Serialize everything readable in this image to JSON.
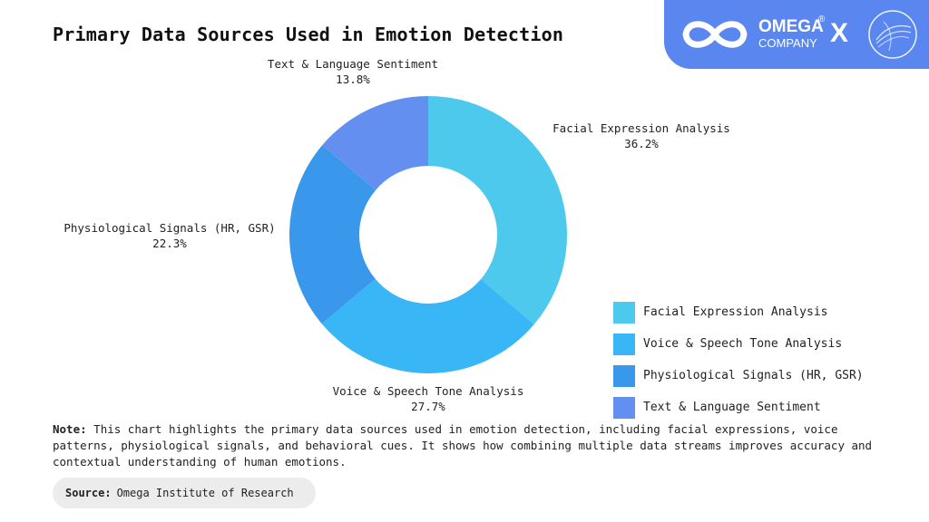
{
  "title": "Primary Data Sources Used in Emotion Detection",
  "brand": {
    "name": "OMEGA",
    "sub": "COMPANY",
    "reg": "®",
    "x": "X",
    "bg_color": "#5a86f0"
  },
  "chart_data": {
    "type": "pie",
    "style": "donut",
    "title": "Primary Data Sources Used in Emotion Detection",
    "legend_position": "bottom-right",
    "slices": [
      {
        "label": "Facial Expression Analysis",
        "value": 36.2,
        "value_label": "36.2%",
        "color": "#4cc9ec"
      },
      {
        "label": "Voice & Speech Tone Analysis",
        "value": 27.7,
        "value_label": "27.7%",
        "color": "#38b6f5"
      },
      {
        "label": "Physiological Signals (HR, GSR)",
        "value": 22.3,
        "value_label": "22.3%",
        "color": "#3a98ec"
      },
      {
        "label": "Text & Language Sentiment",
        "value": 13.8,
        "value_label": "13.8%",
        "color": "#6390f0"
      }
    ]
  },
  "note": {
    "label": "Note:",
    "text": "This chart highlights the primary data sources used in emotion detection, including facial expressions, voice patterns, physiological signals, and behavioral cues. It shows how combining multiple data streams improves accuracy and contextual understanding of human emotions."
  },
  "source": {
    "label": "Source:",
    "text": "Omega Institute of Research"
  }
}
